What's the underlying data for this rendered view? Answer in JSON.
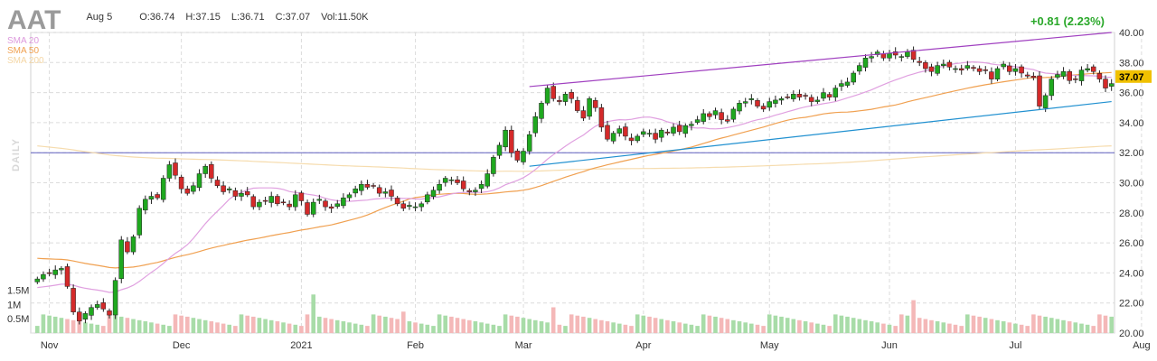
{
  "header": {
    "ticker": "AAT",
    "date": "Aug 5",
    "open": "O:36.74",
    "high": "H:37.15",
    "low": "L:36.71",
    "close": "C:37.07",
    "volume": "Vol:11.50K",
    "change": "+0.81 (2.23%)",
    "change_color": "#2aa82a"
  },
  "legend": {
    "sma20": "SMA 20",
    "sma50": "SMA 50",
    "sma200": "SMA 200",
    "timeframe": "DAILY"
  },
  "chart_data": {
    "type": "candlestick",
    "title": "AAT",
    "timeframe": "DAILY",
    "y_axis": {
      "ticks": [
        "40.00",
        "38.00",
        "36.00",
        "34.00",
        "32.00",
        "30.00",
        "28.00",
        "26.00",
        "24.00",
        "22.00",
        "20.00"
      ],
      "range": [
        20,
        40
      ],
      "position": "right"
    },
    "volume_axis": {
      "ticks": [
        "1.5M",
        "1M",
        "0.5M"
      ],
      "max": 3000000
    },
    "x_axis": {
      "labels": [
        "Nov",
        "Dec",
        "2021",
        "Feb",
        "Mar",
        "Apr",
        "May",
        "Jun",
        "Jul",
        "Aug"
      ]
    },
    "last_price_label": "37.07",
    "last_price_color": "#f0c000",
    "colors": {
      "up": "#1fa81f",
      "down": "#d42a2a",
      "vol_up": "#a8dca8",
      "vol_down": "#f4b8b8",
      "sma20": "#e0a0e0",
      "sma50": "#f0a050",
      "sma200": "#f6dcae",
      "resistance": "#a040c0",
      "support": "#2090d0",
      "horizontal": "#6060c0"
    },
    "horizontal_line": 32.0,
    "trendlines": [
      {
        "name": "resistance",
        "from": [
          "Mar",
          36.4
        ],
        "to": [
          "Aug",
          40.0
        ]
      },
      {
        "name": "support",
        "from": [
          "Mar",
          31.1
        ],
        "to": [
          "Aug",
          35.4
        ]
      }
    ],
    "close_path": [
      23.6,
      23.9,
      24.0,
      24.2,
      24.3,
      23.1,
      21.4,
      20.8,
      21.3,
      21.7,
      21.9,
      21.6,
      21.2,
      23.5,
      26.2,
      25.4,
      26.4,
      28.3,
      28.9,
      29.1,
      29.0,
      30.3,
      31.2,
      30.5,
      29.6,
      29.3,
      29.8,
      30.6,
      31.1,
      30.3,
      29.8,
      29.4,
      29.6,
      29.1,
      29.3,
      29.2,
      28.4,
      28.7,
      28.8,
      29.1,
      28.6,
      28.7,
      28.4,
      29.2,
      28.8,
      27.9,
      28.7,
      28.9,
      28.4,
      28.3,
      28.6,
      29.0,
      29.2,
      29.6,
      29.9,
      29.7,
      29.8,
      29.3,
      29.4,
      29.1,
      28.6,
      28.3,
      28.5,
      28.4,
      28.6,
      29.2,
      29.5,
      29.9,
      30.3,
      30.2,
      30.0,
      29.6,
      29.4,
      29.5,
      29.9,
      30.6,
      31.7,
      32.5,
      33.5,
      32.0,
      31.5,
      32.1,
      33.2,
      34.4,
      35.3,
      36.3,
      35.6,
      35.4,
      35.9,
      35.6,
      34.8,
      34.3,
      35.6,
      35.0,
      33.7,
      32.9,
      33.3,
      33.6,
      33.1,
      32.8,
      33.1,
      33.4,
      33.3,
      32.9,
      33.5,
      33.3,
      33.7,
      33.4,
      33.8,
      33.9,
      34.2,
      34.6,
      34.4,
      34.8,
      34.2,
      34.1,
      34.9,
      35.3,
      35.4,
      35.6,
      35.1,
      34.9,
      35.4,
      35.5,
      35.6,
      35.7,
      35.9,
      35.7,
      35.8,
      35.4,
      35.5,
      36.0,
      35.7,
      36.3,
      36.6,
      36.7,
      37.3,
      37.8,
      38.3,
      38.4,
      38.7,
      38.3,
      38.6,
      38.5,
      38.4,
      38.7,
      38.2,
      38.0,
      37.6,
      37.4,
      37.8,
      37.9,
      37.7,
      37.6,
      37.5,
      37.8,
      37.6,
      37.4,
      37.5,
      36.9,
      37.6,
      37.9,
      37.4,
      37.6,
      37.3,
      37.1,
      37.0,
      35.1,
      35.8,
      36.9,
      37.2,
      37.4,
      36.8,
      36.9,
      37.5,
      37.6,
      37.4,
      36.9,
      36.3,
      36.6
    ],
    "notes": "Daily candlestick chart with SMA 20 / 50 / 200 overlays, volume bars, two trendlines and a horizontal line at 32.00."
  }
}
